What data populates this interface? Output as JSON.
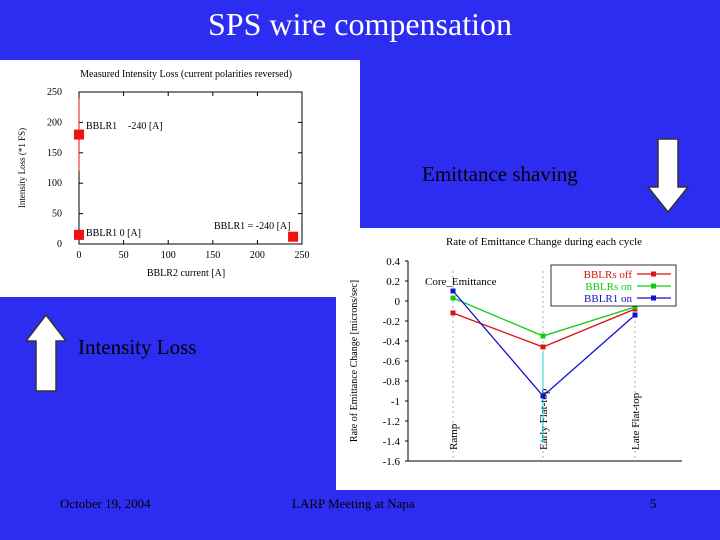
{
  "slide": {
    "title": "SPS wire compensation",
    "label_emittance": "Emittance shaving",
    "label_intensity": "Intensity Loss",
    "footer_date": "October 19, 2004",
    "footer_meeting": "LARP Meeting at Napa",
    "page_number": "5"
  },
  "chart_data": [
    {
      "type": "scatter",
      "title": "Measured Intensity Loss (current polarities reversed)",
      "xlabel": "BBLR2 current [A]",
      "ylabel": "Intensity Loss (*1 FS)",
      "xlim": [
        0,
        250
      ],
      "ylim": [
        0,
        250
      ],
      "x_ticks": [
        "0",
        "50",
        "100",
        "150",
        "200",
        "250"
      ],
      "y_ticks": [
        "0",
        "50",
        "100",
        "150",
        "200",
        "250"
      ],
      "points": [
        {
          "x": 0,
          "y": 180,
          "label": "BBLR1 -240 [A]",
          "err_low": 60,
          "err_high": 60
        },
        {
          "x": 0,
          "y": 15,
          "label": "BBLR1 0 [A]"
        },
        {
          "x": 240,
          "y": 12,
          "label": "BBLR1 = -240 [A]"
        }
      ],
      "color": "#ee1111"
    },
    {
      "type": "line",
      "title": "Rate of Emittance Change during each cycle",
      "ylabel": "Rate of Emittance Change [microns/sec]",
      "categories": [
        "Ramp",
        "Early Flat-top",
        "Late Flat-top"
      ],
      "y_ticks": [
        "0.4",
        "0.2",
        "0",
        "-0.2",
        "-0.4",
        "-0.6",
        "-0.8",
        "-1",
        "-1.2",
        "-1.4",
        "-1.6"
      ],
      "ylim": [
        -1.6,
        0.4
      ],
      "annotation": "Core_Emittance",
      "legend_position": "top-right",
      "series": [
        {
          "name": "BBLRs off",
          "values": [
            -0.12,
            -0.46,
            -0.08
          ],
          "color": "#dd1111"
        },
        {
          "name": "BBLRs on",
          "values": [
            0.03,
            -0.35,
            -0.06
          ],
          "color": "#11cc11"
        },
        {
          "name": "BBLR1 on",
          "values": [
            0.1,
            -0.95,
            -0.14
          ],
          "color": "#1111cc"
        }
      ],
      "error_bars": [
        {
          "series": 2,
          "index": 1,
          "low": -1.4,
          "high": -0.5
        }
      ]
    }
  ]
}
